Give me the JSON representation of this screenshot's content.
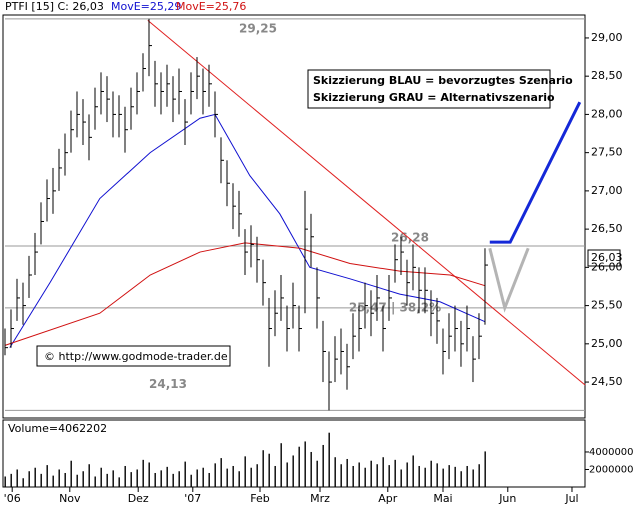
{
  "header": {
    "symbol": "PTFI [15] C: 26,03",
    "ma1": "MovE=25,29",
    "ma2": "MovE=25,76",
    "last_price": "26,03"
  },
  "legend_box": [
    "Skizzierung BLAU = bevorzugtes Szenario",
    "Skizzierung GRAU = Alternativszenario"
  ],
  "copyright": "© http://www.godmode-trader.de",
  "chart_data": [
    {
      "type": "ohlc",
      "xlim": [
        0,
        96.67
      ],
      "ylim": [
        24.03,
        29.3
      ],
      "xticks": [
        {
          "value": 1.2,
          "label": "'06"
        },
        {
          "value": 10.8,
          "label": "Nov"
        },
        {
          "value": 22.2,
          "label": "Dez"
        },
        {
          "value": 31.3,
          "label": "'07"
        },
        {
          "value": 42.5,
          "label": "Feb"
        },
        {
          "value": 52.5,
          "label": "Mrz"
        },
        {
          "value": 63.8,
          "label": "Apr"
        },
        {
          "value": 73,
          "label": "Mai"
        },
        {
          "value": 83.8,
          "label": "Jun"
        },
        {
          "value": 94.5,
          "label": "Jul"
        }
      ],
      "yticks": [
        {
          "value": 29,
          "label": "29,00"
        },
        {
          "value": 28.5,
          "label": "28,50"
        },
        {
          "value": 28,
          "label": "28,00"
        },
        {
          "value": 27.5,
          "label": "27,50"
        },
        {
          "value": 27,
          "label": "27,00"
        },
        {
          "value": 26.5,
          "label": "26,50"
        },
        {
          "value": 26,
          "label": "26,00"
        },
        {
          "value": 25.5,
          "label": "25,50"
        },
        {
          "value": 25,
          "label": "25,00"
        },
        {
          "value": 24.5,
          "label": "24,50"
        }
      ],
      "color": "#000000",
      "high": [
        25.2,
        25.45,
        25.85,
        25.8,
        26.15,
        26.45,
        26.85,
        27.15,
        27.3,
        27.55,
        27.75,
        28.05,
        28.3,
        28.2,
        28.0,
        28.35,
        28.55,
        28.5,
        28.3,
        28.25,
        28.1,
        28.35,
        28.55,
        28.8,
        29.25,
        28.7,
        28.55,
        28.65,
        28.5,
        28.6,
        28.2,
        28.55,
        28.75,
        28.6,
        28.65,
        28.3,
        27.7,
        27.4,
        27.1,
        27.0,
        26.5,
        26.55,
        26.4,
        26.1,
        25.6,
        25.7,
        25.9,
        25.5,
        25.8,
        25.5,
        27.0,
        26.7,
        26.0,
        25.3,
        24.9,
        25.1,
        25.2,
        25.0,
        25.4,
        25.5,
        25.8,
        25.7,
        25.9,
        25.5,
        25.9,
        26.3,
        26.4,
        26.1,
        26.3,
        26.0,
        26.0,
        25.7,
        25.6,
        25.2,
        25.4,
        25.5,
        25.3,
        25.5,
        25.1,
        25.4,
        26.25
      ],
      "low": [
        24.85,
        24.95,
        25.3,
        25.25,
        25.6,
        25.9,
        26.3,
        26.6,
        26.7,
        27.0,
        27.2,
        27.5,
        27.7,
        27.6,
        27.4,
        27.8,
        28.0,
        27.9,
        27.7,
        27.7,
        27.5,
        27.8,
        28.0,
        28.3,
        28.5,
        28.1,
        28.0,
        28.1,
        27.9,
        28.0,
        27.6,
        28.0,
        28.2,
        28.0,
        28.1,
        27.7,
        27.1,
        26.8,
        26.5,
        26.4,
        25.9,
        26.0,
        25.8,
        25.5,
        24.7,
        25.1,
        25.3,
        24.9,
        25.2,
        24.9,
        25.4,
        26.0,
        25.2,
        24.5,
        24.13,
        24.5,
        24.6,
        24.4,
        24.8,
        24.9,
        25.2,
        25.1,
        25.3,
        24.9,
        25.3,
        25.8,
        25.9,
        25.5,
        25.7,
        25.4,
        25.4,
        25.1,
        25.0,
        24.6,
        24.8,
        24.9,
        24.7,
        24.9,
        24.5,
        24.8,
        25.25
      ],
      "close": [
        24.95,
        25.2,
        25.6,
        25.5,
        25.9,
        26.2,
        26.6,
        26.9,
        27.0,
        27.3,
        27.5,
        27.8,
        28.0,
        27.9,
        27.7,
        28.1,
        28.3,
        28.2,
        28.0,
        28.0,
        27.8,
        28.1,
        28.3,
        28.6,
        28.9,
        28.4,
        28.3,
        28.4,
        28.2,
        28.3,
        27.9,
        28.3,
        28.5,
        28.3,
        28.4,
        28.0,
        27.4,
        27.1,
        26.8,
        26.7,
        26.2,
        26.3,
        26.1,
        25.8,
        25.2,
        25.4,
        25.6,
        25.2,
        25.5,
        25.2,
        26.5,
        26.4,
        25.6,
        24.9,
        24.5,
        24.8,
        24.9,
        24.7,
        25.1,
        25.2,
        25.5,
        25.4,
        25.6,
        25.2,
        25.6,
        26.1,
        26.2,
        25.8,
        26.0,
        25.7,
        25.7,
        25.4,
        25.3,
        24.9,
        25.1,
        25.2,
        25.0,
        25.2,
        24.8,
        25.1,
        26.03
      ],
      "moving_averages": [
        {
          "color": "#1010d0",
          "x": [
            0.8,
            7.5,
            15.8,
            24.2,
            32.5,
            35,
            40.8,
            45.8,
            50.8,
            57.5,
            65.8,
            72.5,
            80
          ],
          "values": [
            24.95,
            25.8,
            26.9,
            27.5,
            27.95,
            28.0,
            27.2,
            26.7,
            26.0,
            25.85,
            25.65,
            25.55,
            25.29
          ]
        },
        {
          "color": "#d01010",
          "x": [
            0,
            15.8,
            24.2,
            32.5,
            40,
            49.2,
            57.5,
            65.8,
            74.2,
            80
          ],
          "values": [
            24.98,
            25.4,
            25.9,
            26.2,
            26.32,
            26.25,
            26.05,
            25.95,
            25.9,
            25.76
          ]
        }
      ],
      "levels": [
        {
          "value": 29.25,
          "label": "29,25"
        },
        {
          "value": 26.28,
          "label": "26,28"
        },
        {
          "value": 25.47,
          "label": "25,47 | 38,2%"
        },
        {
          "value": 24.13,
          "label": "24,13"
        }
      ],
      "trendline": {
        "color": "#e02020",
        "x": [
          23.8,
          96.7
        ],
        "values": [
          29.23,
          24.46
        ]
      },
      "scenarios": [
        {
          "color": "#1428d8",
          "x": [
            80.8,
            84.2,
            95.8
          ],
          "values": [
            26.33,
            26.33,
            28.16
          ]
        },
        {
          "color": "#b4b4b4",
          "x": [
            80.8,
            83.3,
            87.2
          ],
          "values": [
            26.25,
            25.47,
            26.25
          ]
        }
      ]
    },
    {
      "type": "bar",
      "title": "Volume=4062202",
      "ylim": [
        0,
        7650000
      ],
      "yticks": [
        4000000,
        2000000
      ],
      "color": "#000000",
      "values": [
        1200000,
        1500000,
        2000000,
        1000000,
        1800000,
        2200000,
        1500000,
        2500000,
        1300000,
        2000000,
        1600000,
        3000000,
        1400000,
        1800000,
        2600000,
        1200000,
        2200000,
        1500000,
        1900000,
        1100000,
        2400000,
        1700000,
        2000000,
        3100000,
        2800000,
        1600000,
        1900000,
        2300000,
        1500000,
        1800000,
        2900000,
        1400000,
        2000000,
        2200000,
        1600000,
        2700000,
        3300000,
        2100000,
        2400000,
        1800000,
        3500000,
        2200000,
        2600000,
        4200000,
        3800000,
        2400000,
        5000000,
        2800000,
        3600000,
        4600000,
        5200000,
        4000000,
        3000000,
        4800000,
        6200000,
        3400000,
        2600000,
        3200000,
        2400000,
        2800000,
        2200000,
        3000000,
        2600000,
        3400000,
        2500000,
        3100000,
        2000000,
        2800000,
        3600000,
        2400000,
        2200000,
        3000000,
        2700000,
        2100000,
        2500000,
        2300000,
        1800000,
        2400000,
        2000000,
        2600000,
        4062202
      ]
    }
  ]
}
